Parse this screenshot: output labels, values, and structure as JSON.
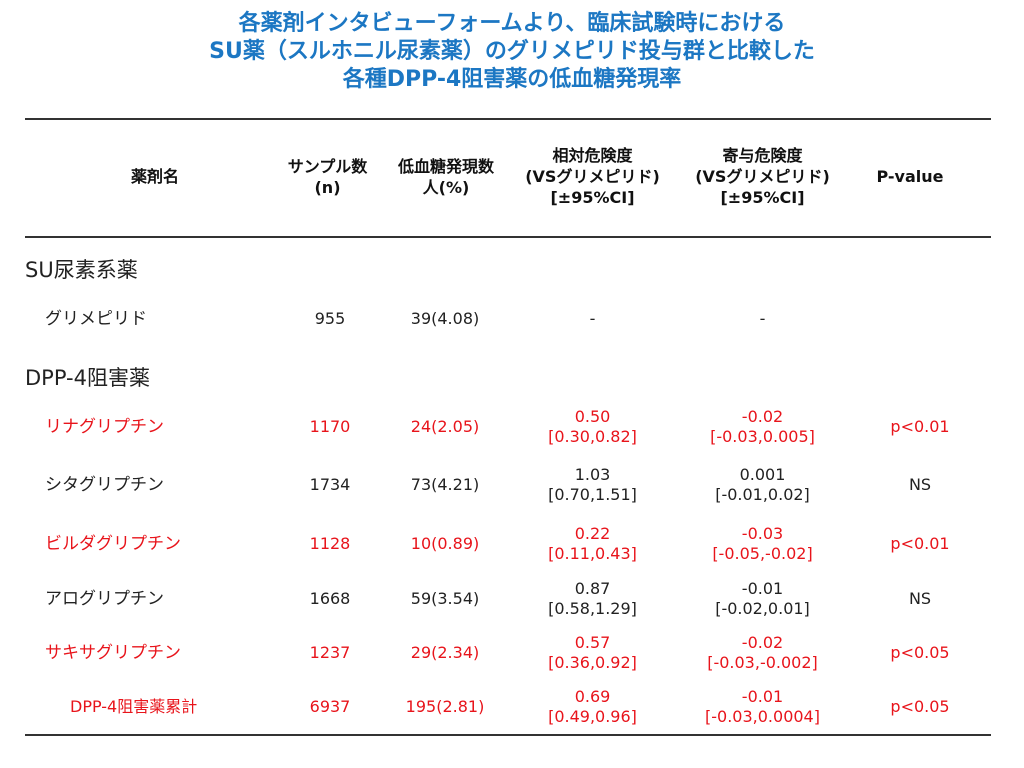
{
  "title": {
    "lines": [
      "各薬剤インタビューフォームより、臨床試験時における",
      "SU薬（スルホニル尿素薬）のグリメピリド投与群と比較した",
      "各種DPP-4阻害薬の低血糖発現率"
    ]
  },
  "table": {
    "headers": {
      "drug": "薬剤名",
      "sample_1": "サンプル数",
      "sample_2": "(n)",
      "hypo_1": "低血糖発現数",
      "hypo_2": "人(%)",
      "rr_1": "相対危険度",
      "rr_2": "(VSグリメピリド)",
      "rr_3": "[±95%CI]",
      "ar_1": "寄与危険度",
      "ar_2": "(VSグリメピリド)",
      "ar_3": "[±95%CI]",
      "p": "P-value"
    },
    "group_su": "SU尿素系薬",
    "group_dpp": "DPP-4阻害薬",
    "rows": [
      {
        "name": "グリメピリド",
        "n": "955",
        "hypo": "39(4.08)",
        "rr1": "-",
        "rr2": "",
        "ar1": "-",
        "ar2": "",
        "p": "",
        "highlight": false
      },
      {
        "name": "リナグリプチン",
        "n": "1170",
        "hypo": "24(2.05)",
        "rr1": "0.50",
        "rr2": "[0.30,0.82]",
        "ar1": "-0.02",
        "ar2": "[-0.03,0.005]",
        "p": "p<0.01",
        "highlight": true
      },
      {
        "name": "シタグリプチン",
        "n": "1734",
        "hypo": "73(4.21)",
        "rr1": "1.03",
        "rr2": "[0.70,1.51]",
        "ar1": "0.001",
        "ar2": "[-0.01,0.02]",
        "p": "NS",
        "highlight": false
      },
      {
        "name": "ビルダグリプチン",
        "n": "1128",
        "hypo": "10(0.89)",
        "rr1": "0.22",
        "rr2": "[0.11,0.43]",
        "ar1": "-0.03",
        "ar2": "[-0.05,-0.02]",
        "p": "p<0.01",
        "highlight": true
      },
      {
        "name": "アログリプチン",
        "n": "1668",
        "hypo": "59(3.54)",
        "rr1": "0.87",
        "rr2": "[0.58,1.29]",
        "ar1": "-0.01",
        "ar2": "[-0.02,0.01]",
        "p": "NS",
        "highlight": false
      },
      {
        "name": "サキサグリプチン",
        "n": "1237",
        "hypo": "29(2.34)",
        "rr1": "0.57",
        "rr2": "[0.36,0.92]",
        "ar1": "-0.02",
        "ar2": "[-0.03,-0.002]",
        "p": "p<0.05",
        "highlight": true
      },
      {
        "name": "DPP-4阻害薬累計",
        "n": "6937",
        "hypo": "195(2.81)",
        "rr1": "0.69",
        "rr2": "[0.49,0.96]",
        "ar1": "-0.01",
        "ar2": "[-0.03,0.0004]",
        "p": "p<0.05",
        "highlight": true
      }
    ]
  },
  "colors": {
    "title": "#1c77c3",
    "highlight": "#e8141b",
    "text": "#222222"
  }
}
